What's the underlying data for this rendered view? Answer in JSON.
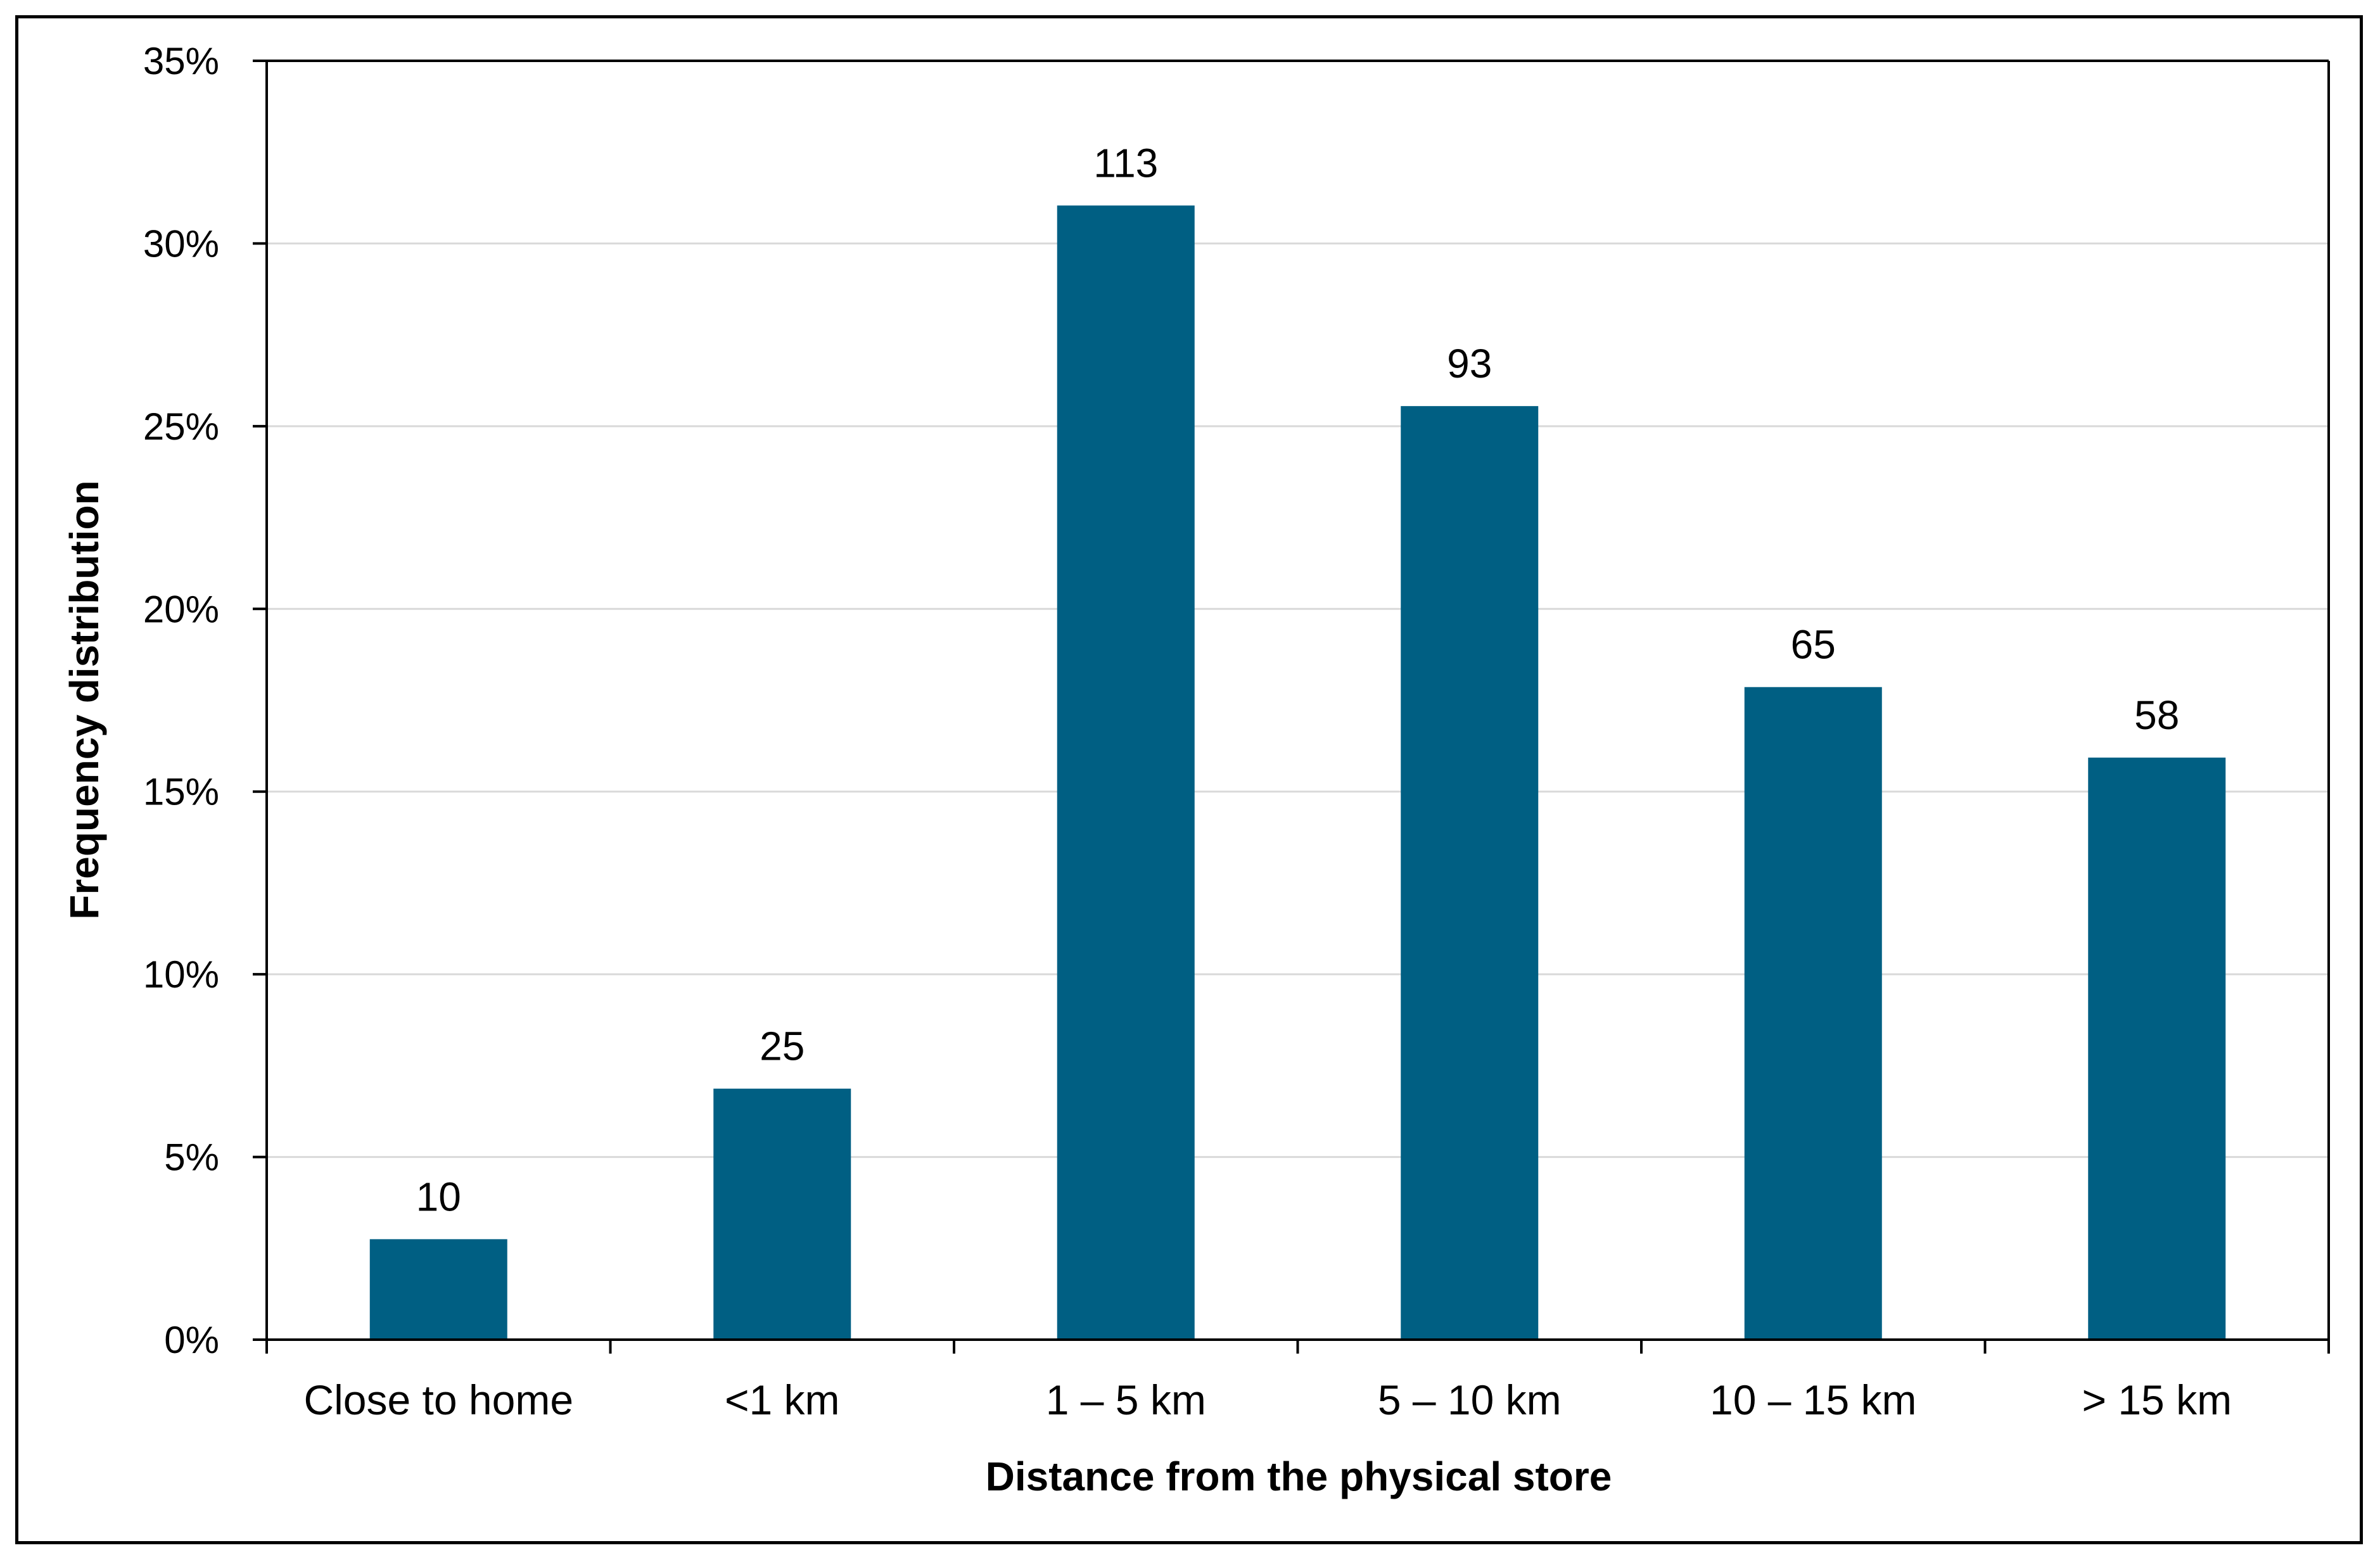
{
  "chart_data": {
    "type": "bar",
    "title": "",
    "xlabel": "Distance from the physical store",
    "ylabel": "Frequency distribution",
    "categories": [
      "Close to home",
      "<1 km",
      "1 – 5 km",
      "5 – 10 km",
      "10 – 15 km",
      "> 15 km"
    ],
    "series": [
      {
        "values": [
          2.75,
          6.87,
          31.04,
          25.55,
          17.86,
          15.93
        ],
        "data_labels": [
          "10",
          "25",
          "113",
          "93",
          "65",
          "58"
        ]
      }
    ],
    "ylim": [
      0,
      35
    ],
    "y_ticks": [
      0,
      5,
      10,
      15,
      20,
      25,
      30,
      35
    ],
    "y_tick_labels": [
      "0%",
      "5%",
      "10%",
      "15%",
      "20%",
      "25%",
      "30%",
      "35%"
    ],
    "grid": true,
    "legend": "none",
    "colors": {
      "bar": "#005F83",
      "grid": "#D9D9D9",
      "axis": "#000000"
    }
  }
}
